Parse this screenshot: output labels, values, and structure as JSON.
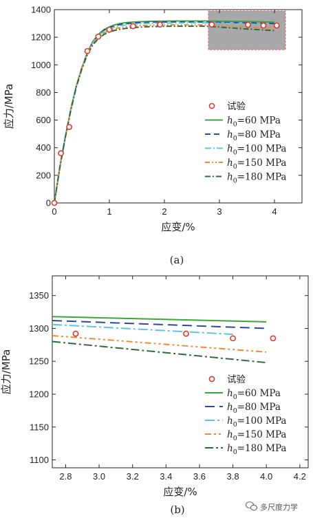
{
  "chart_data": [
    {
      "type": "line",
      "panel_label": "(a)",
      "xlabel": "应变/%",
      "ylabel": "应力/MPa",
      "xlim": [
        0,
        4.5
      ],
      "ylim": [
        0,
        1400
      ],
      "xticks": [
        0,
        1,
        2,
        3,
        4
      ],
      "yticks": [
        0,
        200,
        400,
        600,
        800,
        1000,
        1200,
        1400
      ],
      "grid": false,
      "legend_position": "center-right",
      "highlight_box": {
        "x": [
          2.8,
          4.2
        ],
        "y": [
          1110,
          1390
        ]
      },
      "experiment": {
        "name": "试验",
        "x": [
          0.0,
          0.12,
          0.27,
          0.6,
          0.8,
          1.0,
          1.43,
          1.92,
          2.86,
          3.52,
          3.8,
          4.04
        ],
        "y": [
          0,
          360,
          550,
          1100,
          1205,
          1255,
          1280,
          1292,
          1292,
          1290,
          1285,
          1285
        ]
      },
      "series": [
        {
          "name": "h0=60 MPa",
          "color": "#3aa838",
          "dash": "",
          "x": [
            0,
            0.1,
            0.2,
            0.3,
            0.4,
            0.5,
            0.6,
            0.7,
            0.8,
            0.9,
            1.0,
            1.1,
            1.2,
            1.3,
            1.5,
            1.8,
            2.2,
            2.75,
            3.5,
            4.0
          ],
          "y": [
            0,
            260,
            480,
            680,
            850,
            980,
            1090,
            1170,
            1220,
            1255,
            1275,
            1290,
            1300,
            1306,
            1312,
            1316,
            1318,
            1318,
            1314,
            1310
          ]
        },
        {
          "name": "h0=80 MPa",
          "color": "#2a4aa0",
          "dash": "8,5",
          "x": [
            0,
            0.1,
            0.2,
            0.3,
            0.4,
            0.5,
            0.6,
            0.7,
            0.8,
            0.9,
            1.0,
            1.1,
            1.2,
            1.3,
            1.5,
            1.8,
            2.2,
            2.75,
            3.5,
            4.0
          ],
          "y": [
            0,
            260,
            480,
            680,
            850,
            980,
            1088,
            1166,
            1215,
            1250,
            1270,
            1284,
            1293,
            1299,
            1305,
            1310,
            1311,
            1310,
            1304,
            1300
          ]
        },
        {
          "name": "h0=100 MPa",
          "color": "#5cc6d8",
          "dash": "9,3,2,3",
          "x": [
            0,
            0.1,
            0.2,
            0.3,
            0.4,
            0.5,
            0.6,
            0.7,
            0.8,
            0.9,
            1.0,
            1.1,
            1.2,
            1.3,
            1.5,
            1.8,
            2.2,
            2.75,
            3.5,
            3.8
          ],
          "y": [
            0,
            260,
            480,
            680,
            850,
            980,
            1086,
            1162,
            1210,
            1243,
            1262,
            1275,
            1284,
            1290,
            1297,
            1302,
            1304,
            1304,
            1297,
            1291
          ]
        },
        {
          "name": "h0=150 MPa",
          "color": "#f08a30",
          "dash": "7,3,2,3,2,3",
          "x": [
            0,
            0.1,
            0.2,
            0.3,
            0.4,
            0.5,
            0.6,
            0.7,
            0.8,
            0.9,
            1.0,
            1.1,
            1.2,
            1.3,
            1.5,
            1.8,
            2.2,
            2.75,
            3.5,
            4.0
          ],
          "y": [
            0,
            260,
            478,
            676,
            845,
            975,
            1080,
            1155,
            1200,
            1232,
            1250,
            1262,
            1270,
            1276,
            1283,
            1288,
            1290,
            1289,
            1275,
            1264
          ]
        },
        {
          "name": "h0=180 MPa",
          "color": "#2e6b3a",
          "dash": "8,3,2,3",
          "x": [
            0,
            0.1,
            0.2,
            0.3,
            0.4,
            0.5,
            0.6,
            0.7,
            0.8,
            0.9,
            1.0,
            1.1,
            1.2,
            1.3,
            1.5,
            1.8,
            2.2,
            2.75,
            3.5,
            4.0
          ],
          "y": [
            0,
            258,
            476,
            672,
            840,
            970,
            1074,
            1146,
            1190,
            1220,
            1238,
            1250,
            1258,
            1264,
            1272,
            1278,
            1280,
            1280,
            1260,
            1248
          ]
        }
      ]
    },
    {
      "type": "line",
      "panel_label": "(b)",
      "xlabel": "应变/%",
      "ylabel": "应力/MPa",
      "xlim": [
        2.72,
        4.25
      ],
      "ylim": [
        1088,
        1380
      ],
      "xticks": [
        2.8,
        3.0,
        3.2,
        3.4,
        3.6,
        3.8,
        4.0,
        4.2
      ],
      "yticks": [
        1100,
        1150,
        1200,
        1250,
        1300,
        1350
      ],
      "grid": false,
      "legend_position": "bottom-right",
      "experiment": {
        "name": "试验",
        "x": [
          2.86,
          3.52,
          3.8,
          4.04
        ],
        "y": [
          1292,
          1292,
          1285,
          1285
        ]
      },
      "series": [
        {
          "name": "h0=60 MPa",
          "color": "#3aa838",
          "dash": "",
          "x": [
            2.72,
            4.0
          ],
          "y": [
            1318,
            1310
          ]
        },
        {
          "name": "h0=80 MPa",
          "color": "#2a4aa0",
          "dash": "14,7",
          "x": [
            2.72,
            4.0
          ],
          "y": [
            1312,
            1300
          ]
        },
        {
          "name": "h0=100 MPa",
          "color": "#5cc6d8",
          "dash": "14,4,3,4",
          "x": [
            2.72,
            3.8
          ],
          "y": [
            1306,
            1291
          ]
        },
        {
          "name": "h0=150 MPa",
          "color": "#f08a30",
          "dash": "9,4,3,4,3,4",
          "x": [
            2.72,
            4.0
          ],
          "y": [
            1289,
            1264
          ]
        },
        {
          "name": "h0=180 MPa",
          "color": "#2e6b3a",
          "dash": "12,4,3,4",
          "x": [
            2.72,
            4.0
          ],
          "y": [
            1280,
            1248
          ]
        }
      ]
    }
  ],
  "legend_labels": [
    {
      "name": "h0=60 MPa",
      "base": "h",
      "sub": "0",
      "rest": "=60 MPa"
    },
    {
      "name": "h0=80 MPa",
      "base": "h",
      "sub": "0",
      "rest": "=80 MPa"
    },
    {
      "name": "h0=100 MPa",
      "base": "h",
      "sub": "0",
      "rest": "=100 MPa"
    },
    {
      "name": "h0=150 MPa",
      "base": "h",
      "sub": "0",
      "rest": "=150 MPa"
    },
    {
      "name": "h0=180 MPa",
      "base": "h",
      "sub": "0",
      "rest": "=180 MPa"
    }
  ],
  "colors": {
    "marker": "#e03a2a",
    "box_fill": "#a8a8aa",
    "box_stroke": "#e85a5a",
    "axis": "#222222"
  },
  "watermark": {
    "icon": "wechat-icon",
    "text": "多尺度力学"
  }
}
